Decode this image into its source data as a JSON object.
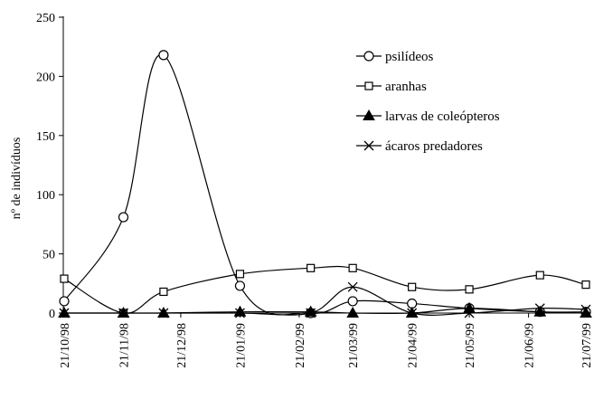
{
  "chart_data": {
    "type": "line",
    "ylabel": "nº de indivíduos",
    "ylim": [
      0,
      250
    ],
    "yticks": [
      0,
      50,
      100,
      150,
      200,
      250
    ],
    "grid": false,
    "legend_position": "top-right",
    "x": [
      "21/10/98",
      "21/11/98",
      "21/12/98",
      "21/01/99",
      "21/02/99",
      "21/03/99",
      "21/04/99",
      "21/05/99",
      "21/06/99",
      "21/07/99"
    ],
    "x_range": [
      "21/10/98",
      "21/07/99"
    ],
    "series": [
      {
        "name": "psilídeos",
        "marker": "circle",
        "points": [
          {
            "date": "1998-10-21",
            "value": 10
          },
          {
            "date": "1998-11-21",
            "value": 81
          },
          {
            "date": "1998-12-12",
            "value": 218
          },
          {
            "date": "1999-01-21",
            "value": 23
          },
          {
            "date": "1999-02-27",
            "value": 0
          },
          {
            "date": "1999-03-21",
            "value": 10
          },
          {
            "date": "1999-04-21",
            "value": 8
          },
          {
            "date": "1999-05-21",
            "value": 4
          },
          {
            "date": "1999-06-27",
            "value": 1
          },
          {
            "date": "1999-07-21",
            "value": 1
          }
        ]
      },
      {
        "name": "aranhas",
        "marker": "square",
        "points": [
          {
            "date": "1998-10-21",
            "value": 29
          },
          {
            "date": "1998-11-21",
            "value": 0
          },
          {
            "date": "1998-12-12",
            "value": 18
          },
          {
            "date": "1999-01-21",
            "value": 33
          },
          {
            "date": "1999-02-27",
            "value": 38
          },
          {
            "date": "1999-03-21",
            "value": 38
          },
          {
            "date": "1999-04-21",
            "value": 22
          },
          {
            "date": "1999-05-21",
            "value": 20
          },
          {
            "date": "1999-06-27",
            "value": 32
          },
          {
            "date": "1999-07-21",
            "value": 24
          }
        ]
      },
      {
        "name": "larvas de coleópteros",
        "marker": "triangle",
        "points": [
          {
            "date": "1998-10-21",
            "value": 0
          },
          {
            "date": "1998-11-21",
            "value": 0
          },
          {
            "date": "1998-12-12",
            "value": 0
          },
          {
            "date": "1999-01-21",
            "value": 1
          },
          {
            "date": "1999-02-27",
            "value": 1
          },
          {
            "date": "1999-03-21",
            "value": 0
          },
          {
            "date": "1999-04-21",
            "value": 0
          },
          {
            "date": "1999-05-21",
            "value": 4
          },
          {
            "date": "1999-06-27",
            "value": 1
          },
          {
            "date": "1999-07-21",
            "value": 0
          }
        ]
      },
      {
        "name": "ácaros predadores",
        "marker": "x",
        "points": [
          {
            "date": "1998-10-21",
            "value": 0
          },
          {
            "date": "1998-11-21",
            "value": 0
          },
          {
            "date": "1998-12-12",
            "value": 0
          },
          {
            "date": "1999-01-21",
            "value": 0
          },
          {
            "date": "1999-02-27",
            "value": 0
          },
          {
            "date": "1999-03-21",
            "value": 22
          },
          {
            "date": "1999-04-21",
            "value": 0
          },
          {
            "date": "1999-05-21",
            "value": 0
          },
          {
            "date": "1999-06-27",
            "value": 4
          },
          {
            "date": "1999-07-21",
            "value": 3
          }
        ]
      }
    ],
    "colors": {
      "line": "#000000",
      "background": "#ffffff"
    }
  }
}
